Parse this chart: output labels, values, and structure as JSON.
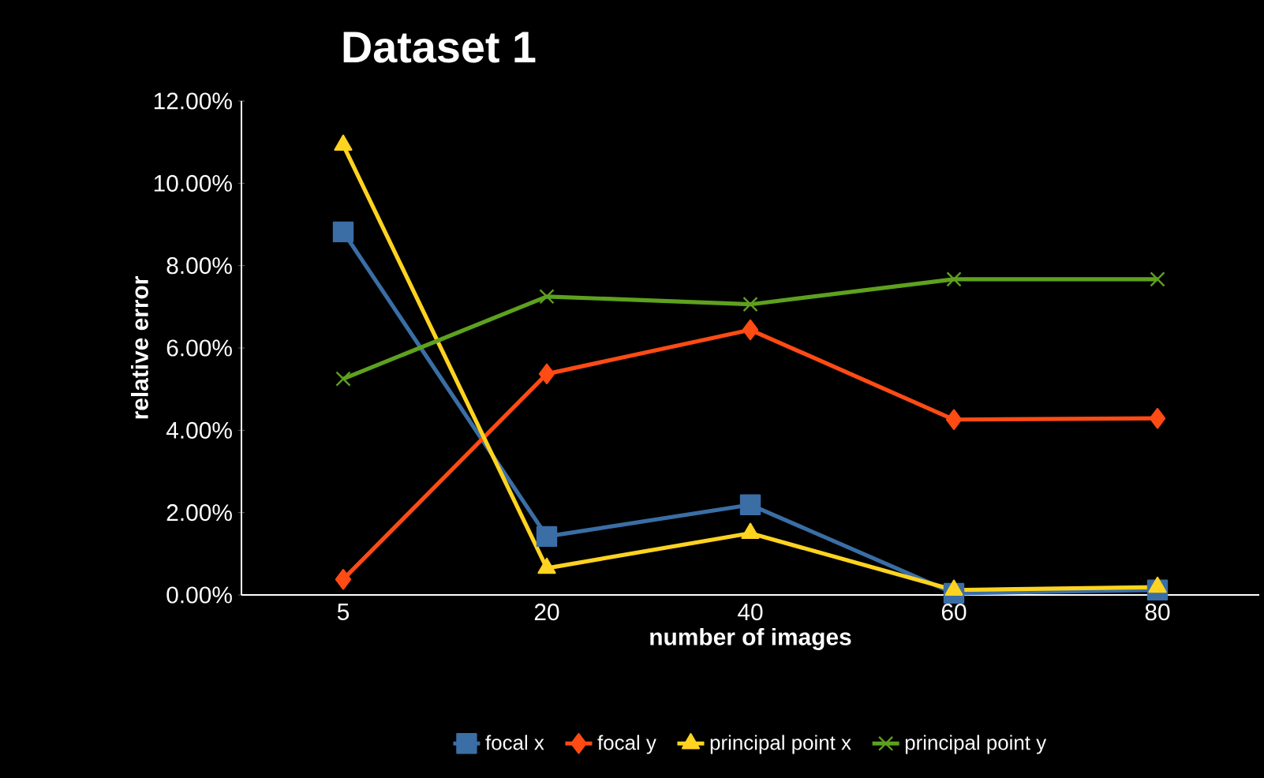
{
  "chart_data": {
    "type": "line",
    "title": "Dataset 1",
    "xlabel": "number of images",
    "ylabel": "relative error",
    "categories": [
      "5",
      "20",
      "40",
      "60",
      "80"
    ],
    "series": [
      {
        "name": "focal x",
        "color": "#3a6ea5",
        "marker": "square",
        "values": [
          8.82,
          1.42,
          2.19,
          0.04,
          0.12
        ]
      },
      {
        "name": "focal y",
        "color": "#ff4b14",
        "marker": "diamond",
        "values": [
          0.38,
          5.37,
          6.44,
          4.26,
          4.29
        ]
      },
      {
        "name": "principal point x",
        "color": "#ffd320",
        "marker": "triangle",
        "values": [
          10.93,
          0.65,
          1.5,
          0.12,
          0.19
        ]
      },
      {
        "name": "principal point y",
        "color": "#5ea11e",
        "marker": "cross",
        "values": [
          5.25,
          7.25,
          7.06,
          7.67,
          7.67
        ]
      }
    ],
    "ylim": [
      0,
      12
    ],
    "yticks": [
      {
        "value": 0,
        "label": "0.00%"
      },
      {
        "value": 2,
        "label": "2.00%"
      },
      {
        "value": 4,
        "label": "4.00%"
      },
      {
        "value": 6,
        "label": "6.00%"
      },
      {
        "value": 8,
        "label": "8.00%"
      },
      {
        "value": 10,
        "label": "10.00%"
      },
      {
        "value": 12,
        "label": "12.00%"
      }
    ],
    "grid": false,
    "legend": "bottom"
  }
}
